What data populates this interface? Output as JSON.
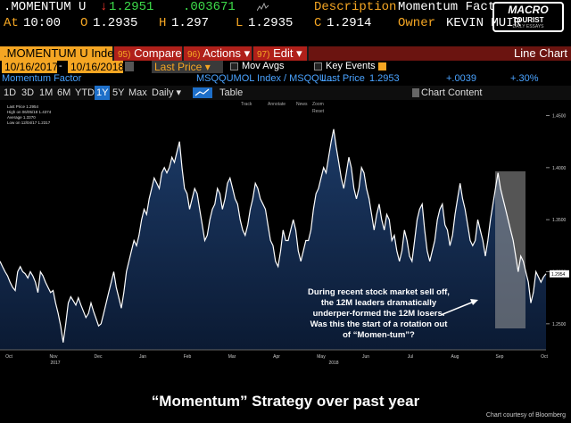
{
  "header": {
    "ticker": ".MOMENTUM U",
    "last_arrow": "↓",
    "last": "1.2951",
    "change": ".003671",
    "description_label": "Description",
    "description": "Momentum Factor",
    "at_label": "At",
    "time": "10:00",
    "open_label": "O",
    "open": "1.2935",
    "high_label": "H",
    "high": "1.297",
    "low_label": "L",
    "low": "1.2935",
    "close_label": "C",
    "close": "1.2914",
    "owner_label": "Owner",
    "owner": "KEVIN MUIR"
  },
  "logo": {
    "line1": "MACRO",
    "line2": "TOURIST",
    "line3": "DAILY ESSAYS"
  },
  "toolbar": {
    "security": ".MOMENTUM U Index",
    "compare_num": "95)",
    "compare": "Compare",
    "actions_num": "96)",
    "actions": "Actions",
    "edit_num": "97)",
    "edit": "Edit",
    "chart_type": "Line Chart"
  },
  "range": {
    "start": "10/16/2017",
    "end": "10/16/2018",
    "price_field": "Last Price",
    "mov_avgs": "Mov Avgs",
    "key_events": "Key Events"
  },
  "series_row": {
    "name": "Momentum Factor",
    "index": "MSQQUMOL Index / MSQQU...",
    "last_price_label": "Last Price",
    "last_price": "1.2953",
    "change": "+.0039",
    "pct_change": "+.30%"
  },
  "periods": [
    "1D",
    "3D",
    "1M",
    "6M",
    "YTD",
    "1Y",
    "5Y",
    "Max"
  ],
  "selected_period": "1Y",
  "freq": "Daily",
  "table_label": "Table",
  "chart_content": "Chart Content",
  "mini_toolbar": [
    "Track",
    "Annotate",
    "News",
    "Zoom",
    "Reset"
  ],
  "legend": {
    "last_price": "Last Price 1.2954",
    "high": "High on 06/05/18 1.4374",
    "average": "Average 1.3370",
    "low": "Low on 12/04/17 1.2317"
  },
  "colors": {
    "accent": "#f5a623",
    "selected": "#1e6fc9",
    "header_red": "#b0201a",
    "area_top": "#1c3a66",
    "area_bottom": "#0b1a33",
    "highlight": "#9a9a9a"
  },
  "chart_data": {
    "type": "area",
    "series": [
      {
        "name": "Momentum Factor",
        "values": [
          1.31,
          1.305,
          1.3,
          1.296,
          1.29,
          1.285,
          1.282,
          1.3,
          1.305,
          1.3,
          1.298,
          1.294,
          1.3,
          1.296,
          1.29,
          1.28,
          1.3,
          1.296,
          1.29,
          1.285,
          1.28,
          1.282,
          1.27,
          1.26,
          1.248,
          1.232,
          1.25,
          1.27,
          1.276,
          1.272,
          1.268,
          1.275,
          1.268,
          1.262,
          1.256,
          1.26,
          1.27,
          1.262,
          1.255,
          1.248,
          1.25,
          1.26,
          1.27,
          1.28,
          1.29,
          1.3,
          1.285,
          1.275,
          1.265,
          1.28,
          1.3,
          1.31,
          1.32,
          1.33,
          1.325,
          1.335,
          1.35,
          1.36,
          1.355,
          1.37,
          1.38,
          1.39,
          1.385,
          1.38,
          1.395,
          1.4,
          1.395,
          1.4,
          1.41,
          1.405,
          1.415,
          1.425,
          1.4,
          1.38,
          1.375,
          1.36,
          1.37,
          1.38,
          1.375,
          1.36,
          1.345,
          1.33,
          1.335,
          1.35,
          1.36,
          1.365,
          1.38,
          1.375,
          1.36,
          1.37,
          1.385,
          1.39,
          1.38,
          1.37,
          1.365,
          1.35,
          1.34,
          1.335,
          1.345,
          1.36,
          1.37,
          1.385,
          1.38,
          1.37,
          1.365,
          1.36,
          1.345,
          1.33,
          1.325,
          1.31,
          1.305,
          1.32,
          1.34,
          1.33,
          1.33,
          1.34,
          1.35,
          1.34,
          1.32,
          1.31,
          1.32,
          1.33,
          1.33,
          1.34,
          1.36,
          1.375,
          1.38,
          1.39,
          1.4,
          1.395,
          1.41,
          1.425,
          1.437,
          1.42,
          1.405,
          1.39,
          1.38,
          1.395,
          1.41,
          1.4,
          1.38,
          1.37,
          1.38,
          1.4,
          1.395,
          1.38,
          1.37,
          1.355,
          1.34,
          1.355,
          1.365,
          1.35,
          1.34,
          1.355,
          1.35,
          1.33,
          1.335,
          1.32,
          1.31,
          1.32,
          1.34,
          1.33,
          1.315,
          1.31,
          1.33,
          1.35,
          1.36,
          1.365,
          1.34,
          1.32,
          1.31,
          1.32,
          1.33,
          1.35,
          1.36,
          1.365,
          1.345,
          1.34,
          1.325,
          1.335,
          1.355,
          1.37,
          1.385,
          1.37,
          1.36,
          1.345,
          1.33,
          1.325,
          1.33,
          1.35,
          1.34,
          1.33,
          1.315,
          1.33,
          1.35,
          1.365,
          1.38,
          1.395,
          1.38,
          1.37,
          1.36,
          1.35,
          1.34,
          1.33,
          1.315,
          1.3,
          1.315,
          1.31,
          1.3,
          1.29,
          1.27,
          1.28,
          1.3,
          1.295,
          1.29,
          1.295,
          1.298
        ]
      }
    ],
    "x_ticks": [
      "Oct",
      "Nov",
      "Dec",
      "Jan",
      "Feb",
      "Mar",
      "Apr",
      "May",
      "Jun",
      "Jul",
      "Aug",
      "Sep",
      "Oct"
    ],
    "year_labels": [
      "2017",
      "2018"
    ],
    "y_ticks": [
      "1.4500",
      "1.4000",
      "1.3500",
      "1.3000",
      "1.2500"
    ],
    "ylim": [
      1.225,
      1.465
    ],
    "last_value_label": "1.2954",
    "grid": false
  },
  "annotation": {
    "text": "During recent stock market sell off, the 12M leaders dramatically underper-formed the 12M losers. Was this the start of a rotation out of “Momen-tum”?"
  },
  "caption": "“Momentum” Strategy over past year",
  "credit": "Chart courtesy of Bloomberg"
}
